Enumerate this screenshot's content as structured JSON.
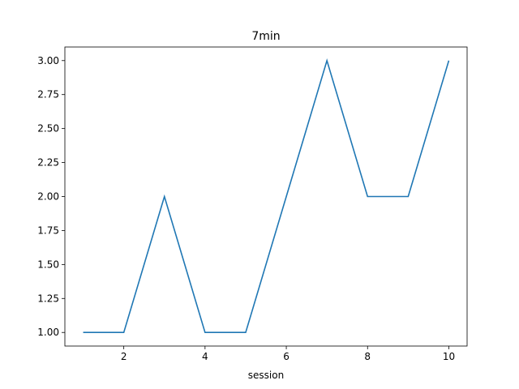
{
  "chart_data": {
    "type": "line",
    "title": "7min",
    "xlabel": "session",
    "ylabel": "",
    "xlim": [
      0.55,
      10.45
    ],
    "ylim": [
      0.9,
      3.1
    ],
    "xticks": [
      2,
      4,
      6,
      8,
      10
    ],
    "xtick_labels": [
      "2",
      "4",
      "6",
      "8",
      "10"
    ],
    "yticks": [
      1.0,
      1.25,
      1.5,
      1.75,
      2.0,
      2.25,
      2.5,
      2.75,
      3.0
    ],
    "ytick_labels": [
      "1.00",
      "1.25",
      "1.50",
      "1.75",
      "2.00",
      "2.25",
      "2.50",
      "2.75",
      "3.00"
    ],
    "grid": false,
    "series": [
      {
        "x": [
          1,
          2,
          3,
          4,
          5,
          6,
          7,
          8,
          9,
          10
        ],
        "values": [
          1,
          1,
          2,
          1,
          1,
          2,
          3,
          2,
          2,
          3
        ],
        "color": "#1f77b4"
      }
    ]
  }
}
